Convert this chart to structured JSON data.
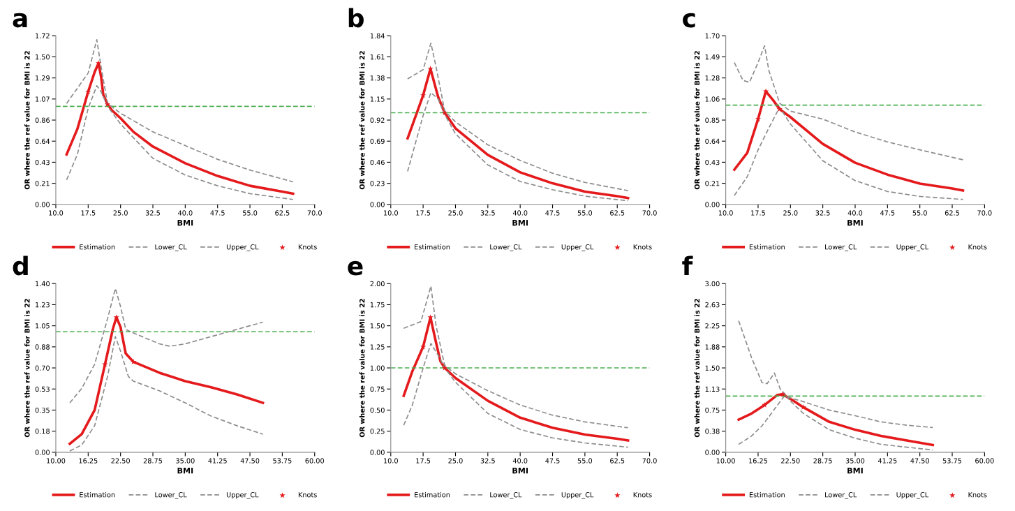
{
  "chart_data": [
    {
      "type": "line",
      "title": "a",
      "xlabel": "BMI",
      "ylabel": "OR where the ref value for BMI is 22",
      "legend": "bottom",
      "xlim": [
        10,
        70
      ],
      "xticks": [
        {
          "value": 10,
          "label": "10.0"
        },
        {
          "value": 17.5,
          "label": "17.5"
        },
        {
          "value": 25,
          "label": "25.0"
        },
        {
          "value": 32.5,
          "label": "32.5"
        },
        {
          "value": 40,
          "label": "40.0"
        },
        {
          "value": 47.5,
          "label": "47.5"
        },
        {
          "value": 55,
          "label": "55.0"
        },
        {
          "value": 62.5,
          "label": "62.5"
        },
        {
          "value": 70,
          "label": "70.0"
        }
      ],
      "ylim": [
        0,
        1.72
      ],
      "yticks": [
        {
          "value": 0,
          "label": "0.00"
        },
        {
          "value": 0.215,
          "label": "0.21"
        },
        {
          "value": 0.43,
          "label": "0.43"
        },
        {
          "value": 0.645,
          "label": "0.64"
        },
        {
          "value": 0.86,
          "label": "0.86"
        },
        {
          "value": 1.075,
          "label": "1.07"
        },
        {
          "value": 1.29,
          "label": "1.29"
        },
        {
          "value": 1.505,
          "label": "1.50"
        },
        {
          "value": 1.72,
          "label": "1.72"
        }
      ],
      "ref_lines": [
        {
          "axis": "y",
          "value": 1,
          "color": "#4caf50",
          "line_style": "dashed"
        }
      ],
      "series": [
        {
          "name": "Estimation",
          "type": "line",
          "color": "#e41a1c",
          "line_style": "solid",
          "x": [
            12.5,
            15,
            17.5,
            19,
            19.9,
            20.5,
            21,
            22,
            23,
            25,
            28,
            32.5,
            40,
            47.5,
            55,
            62.5,
            65
          ],
          "values": [
            0.51,
            0.77,
            1.15,
            1.35,
            1.44,
            1.3,
            1.12,
            1.02,
            0.96,
            0.88,
            0.74,
            0.59,
            0.42,
            0.29,
            0.19,
            0.13,
            0.11
          ]
        },
        {
          "name": "Lower_CL",
          "type": "line",
          "color": "#8c8c8c",
          "line_style": "dashed",
          "x": [
            12.5,
            15,
            17.5,
            19.5,
            20.5,
            22,
            25,
            32.5,
            40,
            47.5,
            55,
            65
          ],
          "values": [
            0.25,
            0.51,
            0.98,
            1.21,
            1.15,
            1.0,
            0.82,
            0.47,
            0.3,
            0.19,
            0.11,
            0.05
          ]
        },
        {
          "name": "Upper_CL",
          "type": "line",
          "color": "#8c8c8c",
          "line_style": "dashed",
          "x": [
            12.5,
            17.5,
            19.5,
            20.5,
            22,
            25,
            32.5,
            40,
            47.5,
            55,
            62.5,
            65
          ],
          "values": [
            1.03,
            1.34,
            1.68,
            1.4,
            1.03,
            0.93,
            0.74,
            0.6,
            0.46,
            0.35,
            0.26,
            0.23
          ]
        },
        {
          "name": "Knots",
          "type": "scatter",
          "color": "#e41a1c",
          "marker": "star",
          "x": [
            17.5,
            19.9,
            22
          ],
          "values": [
            1.15,
            1.44,
            1.02
          ]
        }
      ]
    },
    {
      "type": "line",
      "title": "b",
      "xlabel": "BMI",
      "ylabel": "OR where the ref value for BMI is 22",
      "legend": "bottom",
      "xlim": [
        10,
        70
      ],
      "xticks": [
        {
          "value": 10,
          "label": "10.0"
        },
        {
          "value": 17.5,
          "label": "17.5"
        },
        {
          "value": 25,
          "label": "25.0"
        },
        {
          "value": 32.5,
          "label": "32.5"
        },
        {
          "value": 40,
          "label": "40.0"
        },
        {
          "value": 47.5,
          "label": "47.5"
        },
        {
          "value": 55,
          "label": "55.0"
        },
        {
          "value": 62.5,
          "label": "62.5"
        },
        {
          "value": 70,
          "label": "70.0"
        }
      ],
      "ylim": [
        0,
        1.84
      ],
      "yticks": [
        {
          "value": 0,
          "label": "0.00"
        },
        {
          "value": 0.23,
          "label": "0.23"
        },
        {
          "value": 0.46,
          "label": "0.46"
        },
        {
          "value": 0.69,
          "label": "0.69"
        },
        {
          "value": 0.92,
          "label": "0.92"
        },
        {
          "value": 1.15,
          "label": "1.15"
        },
        {
          "value": 1.38,
          "label": "1.38"
        },
        {
          "value": 1.61,
          "label": "1.61"
        },
        {
          "value": 1.84,
          "label": "1.84"
        }
      ],
      "ref_lines": [
        {
          "axis": "y",
          "value": 1,
          "color": "#4caf50",
          "line_style": "dashed"
        }
      ],
      "series": [
        {
          "name": "Estimation",
          "type": "line",
          "color": "#e41a1c",
          "line_style": "solid",
          "x": [
            13.9,
            17.5,
            19.2,
            21,
            22.5,
            25,
            32.5,
            40,
            47.5,
            55,
            62.5,
            65
          ],
          "values": [
            0.72,
            1.19,
            1.48,
            1.17,
            1.0,
            0.83,
            0.54,
            0.35,
            0.23,
            0.14,
            0.09,
            0.07
          ]
        },
        {
          "name": "Lower_CL",
          "type": "line",
          "color": "#8c8c8c",
          "line_style": "dashed",
          "x": [
            13.9,
            17.5,
            19.3,
            21,
            22.5,
            25,
            32.5,
            40,
            47.5,
            55,
            65
          ],
          "values": [
            0.36,
            0.97,
            1.22,
            1.15,
            0.98,
            0.77,
            0.43,
            0.25,
            0.16,
            0.09,
            0.04
          ]
        },
        {
          "name": "Upper_CL",
          "type": "line",
          "color": "#8c8c8c",
          "line_style": "dashed",
          "x": [
            13.9,
            17.5,
            19.3,
            20.5,
            22.5,
            25,
            32.5,
            40,
            47.5,
            55,
            65
          ],
          "values": [
            1.37,
            1.47,
            1.76,
            1.5,
            1.02,
            0.9,
            0.65,
            0.48,
            0.34,
            0.24,
            0.15
          ]
        },
        {
          "name": "Knots",
          "type": "scatter",
          "color": "#e41a1c",
          "marker": "star",
          "x": [
            17.5,
            19.2,
            22.5
          ],
          "values": [
            1.19,
            1.48,
            1.0
          ]
        }
      ]
    },
    {
      "type": "line",
      "title": "c",
      "xlabel": "BMI",
      "ylabel": "OR where the ref value for BMI is 22",
      "legend": "bottom",
      "xlim": [
        10,
        70
      ],
      "xticks": [
        {
          "value": 10,
          "label": "10.0"
        },
        {
          "value": 17.5,
          "label": "17.5"
        },
        {
          "value": 25,
          "label": "25.0"
        },
        {
          "value": 32.5,
          "label": "32.5"
        },
        {
          "value": 40,
          "label": "40.0"
        },
        {
          "value": 47.5,
          "label": "47.5"
        },
        {
          "value": 55,
          "label": "55.0"
        },
        {
          "value": 62.5,
          "label": "62.5"
        },
        {
          "value": 70,
          "label": "70.0"
        }
      ],
      "ylim": [
        0,
        1.7
      ],
      "yticks": [
        {
          "value": 0,
          "label": "0.00"
        },
        {
          "value": 0.2125,
          "label": "0.21"
        },
        {
          "value": 0.425,
          "label": "0.43"
        },
        {
          "value": 0.6375,
          "label": "0.64"
        },
        {
          "value": 0.85,
          "label": "0.85"
        },
        {
          "value": 1.0625,
          "label": "1.06"
        },
        {
          "value": 1.275,
          "label": "1.28"
        },
        {
          "value": 1.4875,
          "label": "1.49"
        },
        {
          "value": 1.7,
          "label": "1.70"
        }
      ],
      "ref_lines": [
        {
          "axis": "y",
          "value": 1,
          "color": "#4caf50",
          "line_style": "dashed"
        }
      ],
      "series": [
        {
          "name": "Estimation",
          "type": "line",
          "color": "#e41a1c",
          "line_style": "solid",
          "x": [
            12,
            15,
            17.5,
            19.3,
            21,
            22.5,
            25,
            32.5,
            40,
            47.5,
            55,
            62.5,
            65
          ],
          "values": [
            0.35,
            0.52,
            0.86,
            1.14,
            1.05,
            0.96,
            0.88,
            0.61,
            0.42,
            0.3,
            0.21,
            0.16,
            0.14
          ]
        },
        {
          "name": "Lower_CL",
          "type": "line",
          "color": "#8c8c8c",
          "line_style": "dashed",
          "x": [
            12,
            15,
            17.5,
            20,
            22.5,
            25,
            32.5,
            40,
            47.5,
            55,
            65
          ],
          "values": [
            0.09,
            0.28,
            0.55,
            0.77,
            0.98,
            0.81,
            0.44,
            0.24,
            0.13,
            0.08,
            0.05
          ]
        },
        {
          "name": "Upper_CL",
          "type": "line",
          "color": "#8c8c8c",
          "line_style": "dashed",
          "x": [
            12,
            14,
            15.5,
            17.5,
            19,
            20,
            22.5,
            25,
            32.5,
            40,
            47.5,
            55,
            65
          ],
          "values": [
            1.43,
            1.25,
            1.23,
            1.43,
            1.6,
            1.35,
            1.02,
            0.94,
            0.86,
            0.73,
            0.63,
            0.55,
            0.45
          ]
        },
        {
          "name": "Knots",
          "type": "scatter",
          "color": "#e41a1c",
          "marker": "star",
          "x": [
            17.5,
            19.3,
            22.5
          ],
          "values": [
            0.86,
            1.14,
            0.96
          ]
        }
      ]
    },
    {
      "type": "line",
      "title": "d",
      "xlabel": "BMI",
      "ylabel": "OR where the ref value for BMI is 22",
      "legend": "bottom",
      "xlim": [
        10,
        60
      ],
      "xticks": [
        {
          "value": 10,
          "label": "10.00"
        },
        {
          "value": 16.25,
          "label": "16.25"
        },
        {
          "value": 22.5,
          "label": "22.50"
        },
        {
          "value": 28.75,
          "label": "28.75"
        },
        {
          "value": 35,
          "label": "35.00"
        },
        {
          "value": 41.25,
          "label": "41.25"
        },
        {
          "value": 47.5,
          "label": "47.50"
        },
        {
          "value": 53.75,
          "label": "53.75"
        },
        {
          "value": 60,
          "label": "60.00"
        }
      ],
      "ylim": [
        0,
        1.4
      ],
      "yticks": [
        {
          "value": 0,
          "label": "0.00"
        },
        {
          "value": 0.175,
          "label": "0.18"
        },
        {
          "value": 0.35,
          "label": "0.35"
        },
        {
          "value": 0.525,
          "label": "0.53"
        },
        {
          "value": 0.7,
          "label": "0.70"
        },
        {
          "value": 0.875,
          "label": "0.88"
        },
        {
          "value": 1.05,
          "label": "1.05"
        },
        {
          "value": 1.225,
          "label": "1.23"
        },
        {
          "value": 1.4,
          "label": "1.40"
        }
      ],
      "ref_lines": [
        {
          "axis": "y",
          "value": 1,
          "color": "#4caf50",
          "line_style": "dashed"
        }
      ],
      "series": [
        {
          "name": "Estimation",
          "type": "line",
          "color": "#e41a1c",
          "line_style": "solid",
          "x": [
            12.7,
            15,
            17.5,
            19.5,
            21,
            21.7,
            22.5,
            23.5,
            25,
            30,
            35,
            40,
            45,
            50
          ],
          "values": [
            0.07,
            0.15,
            0.35,
            0.73,
            1.02,
            1.12,
            1.04,
            0.82,
            0.75,
            0.66,
            0.59,
            0.54,
            0.48,
            0.41
          ]
        },
        {
          "name": "Lower_CL",
          "type": "line",
          "color": "#8c8c8c",
          "line_style": "dashed",
          "x": [
            12.7,
            15,
            17.5,
            20,
            21.5,
            22.5,
            24,
            25,
            30,
            35,
            40,
            45,
            50
          ],
          "values": [
            0.01,
            0.06,
            0.22,
            0.63,
            0.96,
            0.84,
            0.63,
            0.59,
            0.51,
            0.41,
            0.3,
            0.22,
            0.15
          ]
        },
        {
          "name": "Upper_CL",
          "type": "line",
          "color": "#8c8c8c",
          "line_style": "dashed",
          "x": [
            12.7,
            15,
            17.5,
            20,
            21.5,
            22.5,
            23.5,
            25,
            30,
            32,
            35,
            40,
            45,
            50
          ],
          "values": [
            0.41,
            0.53,
            0.73,
            1.11,
            1.36,
            1.21,
            1.02,
            0.99,
            0.9,
            0.88,
            0.9,
            0.96,
            1.02,
            1.08
          ]
        },
        {
          "name": "Knots",
          "type": "scatter",
          "color": "#e41a1c",
          "marker": "star",
          "x": [
            19.5,
            21.7,
            25
          ],
          "values": [
            0.73,
            1.12,
            0.75
          ]
        }
      ]
    },
    {
      "type": "line",
      "title": "e",
      "xlabel": "BMI",
      "ylabel": "OR where the ref value for BMI is 22",
      "legend": "bottom",
      "xlim": [
        10,
        70
      ],
      "xticks": [
        {
          "value": 10,
          "label": "10.0"
        },
        {
          "value": 17.5,
          "label": "17.5"
        },
        {
          "value": 25,
          "label": "25.0"
        },
        {
          "value": 32.5,
          "label": "32.5"
        },
        {
          "value": 40,
          "label": "40.0"
        },
        {
          "value": 47.5,
          "label": "47.5"
        },
        {
          "value": 55,
          "label": "55.0"
        },
        {
          "value": 62.5,
          "label": "62.5"
        },
        {
          "value": 70,
          "label": "70.0"
        }
      ],
      "ylim": [
        0,
        2
      ],
      "yticks": [
        {
          "value": 0,
          "label": "0.00"
        },
        {
          "value": 0.25,
          "label": "0.25"
        },
        {
          "value": 0.5,
          "label": "0.50"
        },
        {
          "value": 0.75,
          "label": "0.75"
        },
        {
          "value": 1,
          "label": "1.00"
        },
        {
          "value": 1.25,
          "label": "1.25"
        },
        {
          "value": 1.5,
          "label": "1.50"
        },
        {
          "value": 1.75,
          "label": "1.75"
        },
        {
          "value": 2,
          "label": "2.00"
        }
      ],
      "ref_lines": [
        {
          "axis": "y",
          "value": 1,
          "color": "#4caf50",
          "line_style": "dashed"
        }
      ],
      "series": [
        {
          "name": "Estimation",
          "type": "line",
          "color": "#e41a1c",
          "line_style": "solid",
          "x": [
            13,
            15,
            17.5,
            19.2,
            20.5,
            21.5,
            22.5,
            25,
            32.5,
            40,
            47.5,
            55,
            62.5,
            65
          ],
          "values": [
            0.67,
            0.96,
            1.25,
            1.6,
            1.3,
            1.08,
            1.0,
            0.88,
            0.61,
            0.41,
            0.29,
            0.21,
            0.16,
            0.14
          ]
        },
        {
          "name": "Lower_CL",
          "type": "line",
          "color": "#8c8c8c",
          "line_style": "dashed",
          "x": [
            13,
            15,
            17.5,
            19.3,
            21,
            22.5,
            25,
            32.5,
            40,
            47.5,
            55,
            65
          ],
          "values": [
            0.32,
            0.56,
            1.0,
            1.29,
            1.15,
            1.0,
            0.83,
            0.46,
            0.27,
            0.17,
            0.11,
            0.06
          ]
        },
        {
          "name": "Upper_CL",
          "type": "line",
          "color": "#8c8c8c",
          "line_style": "dashed",
          "x": [
            13,
            17,
            19.3,
            20.5,
            22.5,
            25,
            32.5,
            40,
            47.5,
            55,
            65
          ],
          "values": [
            1.47,
            1.55,
            1.97,
            1.5,
            1.03,
            0.93,
            0.73,
            0.56,
            0.44,
            0.36,
            0.29
          ]
        },
        {
          "name": "Knots",
          "type": "scatter",
          "color": "#e41a1c",
          "marker": "star",
          "x": [
            17.5,
            19.2,
            22.5
          ],
          "values": [
            1.25,
            1.6,
            1.0
          ]
        }
      ]
    },
    {
      "type": "line",
      "title": "f",
      "xlabel": "BMI",
      "ylabel": "OR where the ref value for BMI is 22",
      "legend": "bottom",
      "xlim": [
        10,
        60
      ],
      "xticks": [
        {
          "value": 10,
          "label": "10.00"
        },
        {
          "value": 16.25,
          "label": "16.25"
        },
        {
          "value": 22.5,
          "label": "22.50"
        },
        {
          "value": 28.75,
          "label": "28.75"
        },
        {
          "value": 35,
          "label": "35.00"
        },
        {
          "value": 41.25,
          "label": "41.25"
        },
        {
          "value": 47.5,
          "label": "47.50"
        },
        {
          "value": 53.75,
          "label": "53.75"
        },
        {
          "value": 60,
          "label": "60.00"
        }
      ],
      "ylim": [
        0,
        3
      ],
      "yticks": [
        {
          "value": 0,
          "label": "0.00"
        },
        {
          "value": 0.375,
          "label": "0.38"
        },
        {
          "value": 0.75,
          "label": "0.75"
        },
        {
          "value": 1.125,
          "label": "1.13"
        },
        {
          "value": 1.5,
          "label": "1.50"
        },
        {
          "value": 1.875,
          "label": "1.88"
        },
        {
          "value": 2.25,
          "label": "2.25"
        },
        {
          "value": 2.625,
          "label": "2.63"
        },
        {
          "value": 3,
          "label": "3.00"
        }
      ],
      "ref_lines": [
        {
          "axis": "y",
          "value": 1,
          "color": "#4caf50",
          "line_style": "dashed"
        }
      ],
      "series": [
        {
          "name": "Estimation",
          "type": "line",
          "color": "#e41a1c",
          "line_style": "solid",
          "x": [
            12.5,
            15,
            17.5,
            20,
            21,
            22.5,
            25,
            30,
            35,
            40,
            45,
            50
          ],
          "values": [
            0.58,
            0.69,
            0.84,
            1.02,
            1.03,
            0.95,
            0.8,
            0.54,
            0.4,
            0.29,
            0.21,
            0.13
          ]
        },
        {
          "name": "Lower_CL",
          "type": "line",
          "color": "#8c8c8c",
          "line_style": "dashed",
          "x": [
            12.5,
            15,
            17,
            18.5,
            20,
            21.5,
            22.5,
            25,
            30,
            35,
            40,
            45,
            50
          ],
          "values": [
            0.14,
            0.29,
            0.47,
            0.65,
            0.84,
            1.02,
            0.91,
            0.69,
            0.4,
            0.25,
            0.14,
            0.09,
            0.04
          ]
        },
        {
          "name": "Upper_CL",
          "type": "line",
          "color": "#8c8c8c",
          "line_style": "dashed",
          "x": [
            12.5,
            15,
            17,
            18,
            19.4,
            20.5,
            22,
            25,
            30,
            35,
            40,
            45,
            50
          ],
          "values": [
            2.34,
            1.68,
            1.24,
            1.22,
            1.41,
            1.13,
            0.98,
            0.9,
            0.75,
            0.65,
            0.54,
            0.48,
            0.44
          ]
        },
        {
          "name": "Knots",
          "type": "scatter",
          "color": "#e41a1c",
          "marker": "star",
          "x": [
            17.5,
            21,
            25
          ],
          "values": [
            0.84,
            1.03,
            0.8
          ]
        }
      ]
    }
  ]
}
